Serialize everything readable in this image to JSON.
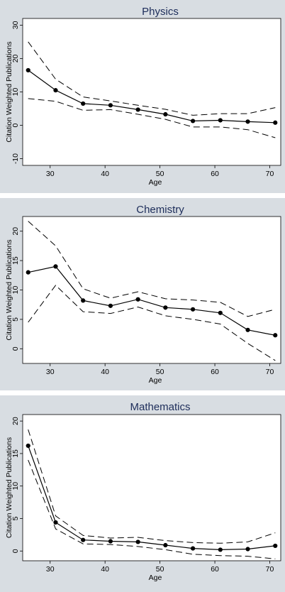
{
  "chart_data": [
    {
      "type": "line",
      "title": "Physics",
      "xlabel": "Age",
      "ylabel": "Citation Weighted Publications",
      "xlim": [
        25,
        72
      ],
      "ylim": [
        -12,
        32
      ],
      "xticks": [
        30,
        40,
        50,
        60,
        70
      ],
      "yticks": [
        -10,
        0,
        10,
        20,
        30
      ],
      "x": [
        26,
        31,
        36,
        41,
        46,
        51,
        56,
        61,
        66,
        71
      ],
      "series": [
        {
          "role": "estimate",
          "style": "solid-with-markers",
          "values": [
            16.5,
            10.5,
            6.5,
            6.0,
            4.7,
            3.3,
            1.3,
            1.5,
            1.1,
            0.8
          ]
        },
        {
          "role": "upper",
          "style": "dashed",
          "values": [
            25.0,
            13.8,
            8.5,
            7.3,
            6.0,
            4.8,
            3.0,
            3.5,
            3.5,
            5.3
          ]
        },
        {
          "role": "lower",
          "style": "dashed",
          "values": [
            8.0,
            7.2,
            4.5,
            4.7,
            3.3,
            1.8,
            -0.5,
            -0.5,
            -1.3,
            -3.7
          ]
        }
      ]
    },
    {
      "type": "line",
      "title": "Chemistry",
      "xlabel": "Age",
      "ylabel": "Citation Weighted Publications",
      "xlim": [
        25,
        72
      ],
      "ylim": [
        -2.5,
        22.5
      ],
      "xticks": [
        30,
        40,
        50,
        60,
        70
      ],
      "yticks": [
        0,
        5,
        10,
        15,
        20
      ],
      "x": [
        26,
        31,
        36,
        41,
        46,
        51,
        56,
        61,
        66,
        71
      ],
      "series": [
        {
          "role": "estimate",
          "style": "solid-with-markers",
          "values": [
            13.0,
            14.0,
            8.2,
            7.3,
            8.4,
            7.0,
            6.7,
            6.1,
            3.2,
            2.3
          ]
        },
        {
          "role": "upper",
          "style": "dashed",
          "values": [
            21.7,
            17.5,
            10.2,
            8.6,
            9.7,
            8.5,
            8.3,
            7.9,
            5.5,
            6.7
          ]
        },
        {
          "role": "lower",
          "style": "dashed",
          "values": [
            4.5,
            10.8,
            6.3,
            6.0,
            7.1,
            5.6,
            5.0,
            4.2,
            0.9,
            -2.0
          ]
        }
      ]
    },
    {
      "type": "line",
      "title": "Mathematics",
      "xlabel": "Age",
      "ylabel": "Citation Weighted Publications",
      "xlim": [
        25,
        72
      ],
      "ylim": [
        -1.5,
        21
      ],
      "xticks": [
        30,
        40,
        50,
        60,
        70
      ],
      "yticks": [
        0,
        5,
        10,
        15,
        20
      ],
      "x": [
        26,
        31,
        36,
        41,
        46,
        51,
        56,
        61,
        66,
        71
      ],
      "series": [
        {
          "role": "estimate",
          "style": "solid-with-markers",
          "values": [
            16.2,
            4.4,
            1.7,
            1.5,
            1.4,
            0.9,
            0.4,
            0.2,
            0.3,
            0.8
          ]
        },
        {
          "role": "upper",
          "style": "dashed",
          "values": [
            18.7,
            5.4,
            2.4,
            2.0,
            2.1,
            1.6,
            1.3,
            1.2,
            1.4,
            2.8
          ]
        },
        {
          "role": "lower",
          "style": "dashed",
          "values": [
            14.0,
            3.4,
            1.1,
            1.0,
            0.7,
            0.2,
            -0.5,
            -0.7,
            -0.8,
            -1.2
          ]
        }
      ]
    }
  ]
}
